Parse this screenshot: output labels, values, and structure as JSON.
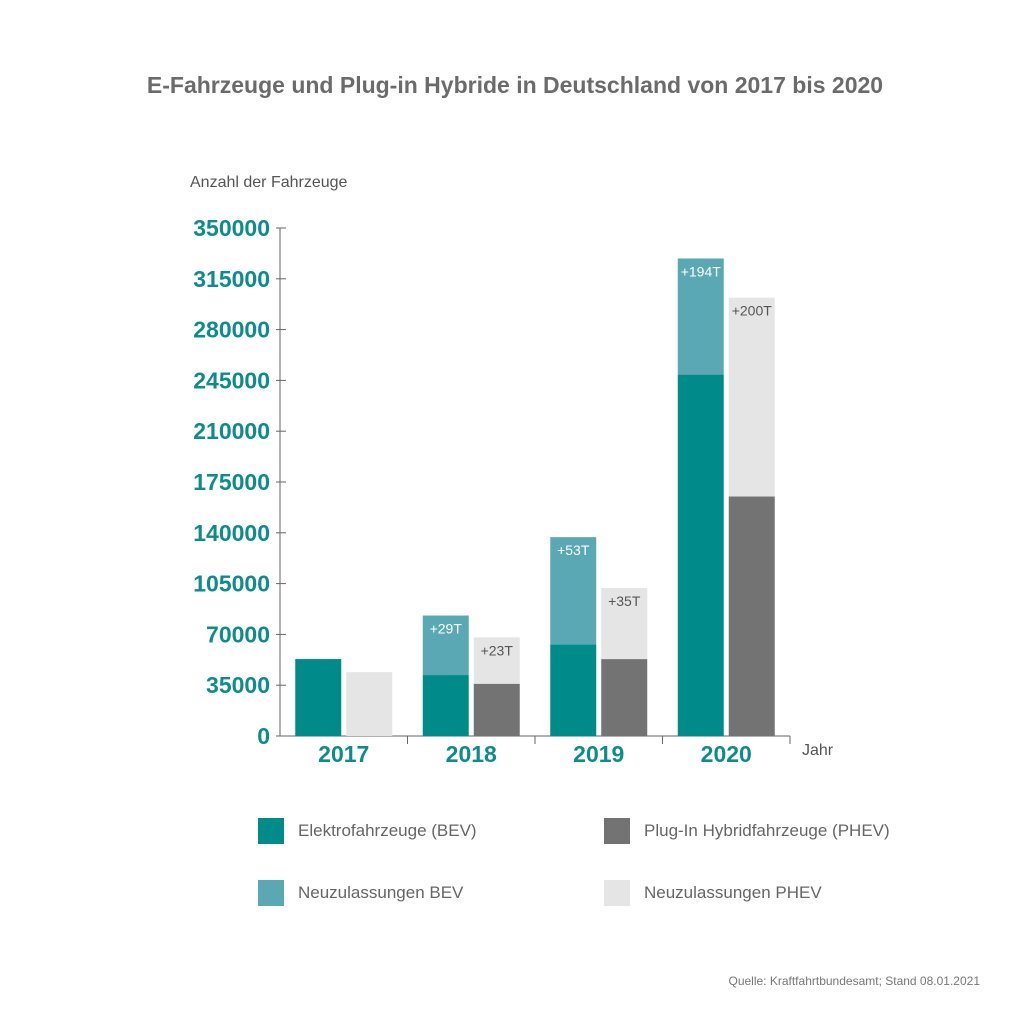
{
  "chart_data": {
    "type": "bar",
    "title": "E-Fahrzeuge und Plug-in Hybride in Deutschland von 2017 bis 2020",
    "ylabel": "Anzahl der Fahrzeuge",
    "xlabel": "Jahr",
    "ylim": [
      0,
      350000
    ],
    "yticks": [
      "0",
      "35000",
      "70000",
      "105000",
      "140000",
      "175000",
      "210000",
      "245000",
      "280000",
      "315000",
      "350000"
    ],
    "categories": [
      "2017",
      "2018",
      "2019",
      "2020"
    ],
    "stacks": [
      {
        "name": "BEV",
        "series": [
          {
            "name": "Elektrofahrzeuge (BEV)",
            "color": "#008b8b",
            "values": [
              53000,
              42000,
              63000,
              249000
            ]
          },
          {
            "name": "Neuzulassungen BEV",
            "color": "#5ba8b5",
            "values": [
              0,
              41000,
              74000,
              80000
            ],
            "labels": [
              "",
              "+29T",
              "+53T",
              "+194T"
            ]
          }
        ]
      },
      {
        "name": "PHEV",
        "series": [
          {
            "name": "Plug-In Hybridfahrzeuge (PHEV)",
            "color": "#737373",
            "values": [
              0,
              36000,
              53000,
              165000
            ]
          },
          {
            "name": "Neuzulassungen PHEV",
            "color": "#e6e5e6",
            "values": [
              44000,
              32000,
              49000,
              137000
            ],
            "labels": [
              "",
              "+23T",
              "+35T",
              "+200T"
            ]
          }
        ]
      }
    ],
    "legend": [
      {
        "label": "Elektrofahrzeuge (BEV)",
        "color": "#008b8b"
      },
      {
        "label": "Plug-In Hybridfahrzeuge (PHEV)",
        "color": "#737373"
      },
      {
        "label": "Neuzulassungen BEV",
        "color": "#5ba8b5"
      },
      {
        "label": "Neuzulassungen PHEV",
        "color": "#e6e5e6"
      }
    ],
    "legend_position": "bottom",
    "grid": false
  },
  "source": "Quelle: Kraftfahrtbundesamt; Stand 08.01.2021"
}
